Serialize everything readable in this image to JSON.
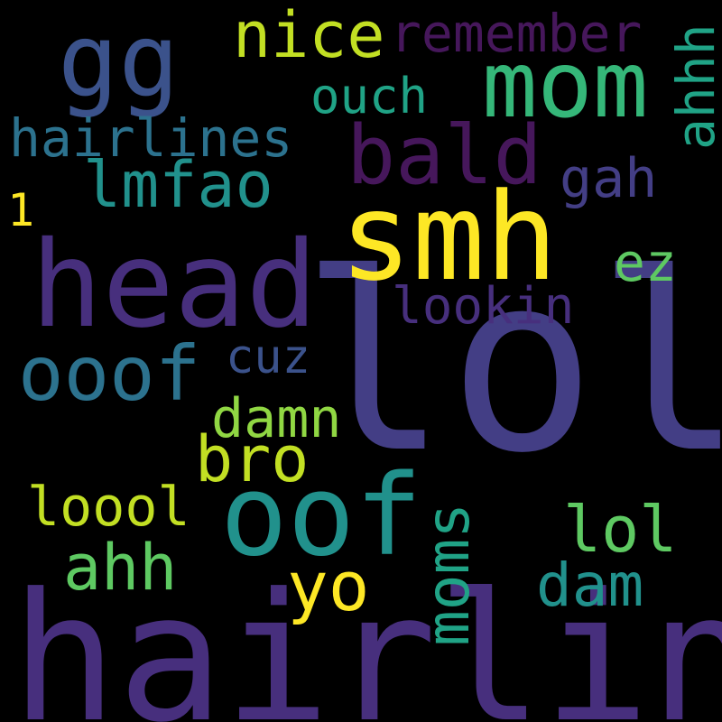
{
  "palette": {
    "background": "#000000",
    "dark_purple": "#46175b",
    "purple": "#472f7d",
    "indigo": "#433e85",
    "blue": "#3b528b",
    "teal_blue": "#2c728e",
    "teal": "#21918c",
    "sea_green": "#20a386",
    "green": "#35b779",
    "light_green": "#5ec962",
    "lime": "#90d743",
    "yellow_green": "#c2df23",
    "yellow": "#fde725"
  },
  "words": {
    "lol_big": {
      "text": "lol",
      "color": "#433e85"
    },
    "hairline": {
      "text": "hairline",
      "color": "#472f7d"
    },
    "smh": {
      "text": "smh",
      "color": "#fde725"
    },
    "head": {
      "text": "head",
      "color": "#472f7d"
    },
    "oof": {
      "text": "oof",
      "color": "#21918c"
    },
    "gg": {
      "text": "gg",
      "color": "#3b528b"
    },
    "mom": {
      "text": "mom",
      "color": "#35b779"
    },
    "bald": {
      "text": "bald",
      "color": "#46175b"
    },
    "ooof": {
      "text": "ooof",
      "color": "#2c728e"
    },
    "yo": {
      "text": "yo",
      "color": "#fde725"
    },
    "nice": {
      "text": "nice",
      "color": "#c2df23"
    },
    "lmfao": {
      "text": "lmfao",
      "color": "#21918c"
    },
    "bro": {
      "text": "bro",
      "color": "#c2df23"
    },
    "ahh": {
      "text": "ahh",
      "color": "#5ec962"
    },
    "lol_small": {
      "text": "lol",
      "color": "#5ec962"
    },
    "damn": {
      "text": "damn",
      "color": "#90d743"
    },
    "dam": {
      "text": "dam",
      "color": "#21918c"
    },
    "hairlines": {
      "text": "hairlines",
      "color": "#2c728e"
    },
    "remember": {
      "text": "remember",
      "color": "#46175b"
    },
    "ouch": {
      "text": "ouch",
      "color": "#20a386"
    },
    "lookin": {
      "text": "lookin",
      "color": "#472f7d"
    },
    "gah": {
      "text": "gah",
      "color": "#433e85"
    },
    "ez": {
      "text": "ez",
      "color": "#5ec962"
    },
    "cuz": {
      "text": "cuz",
      "color": "#3b528b"
    },
    "loool": {
      "text": "loool",
      "color": "#c2df23"
    },
    "one": {
      "text": "1",
      "color": "#fde725"
    },
    "ahhh": {
      "text": "ahhh",
      "color": "#20a386"
    },
    "moms": {
      "text": "moms",
      "color": "#20a386"
    }
  }
}
